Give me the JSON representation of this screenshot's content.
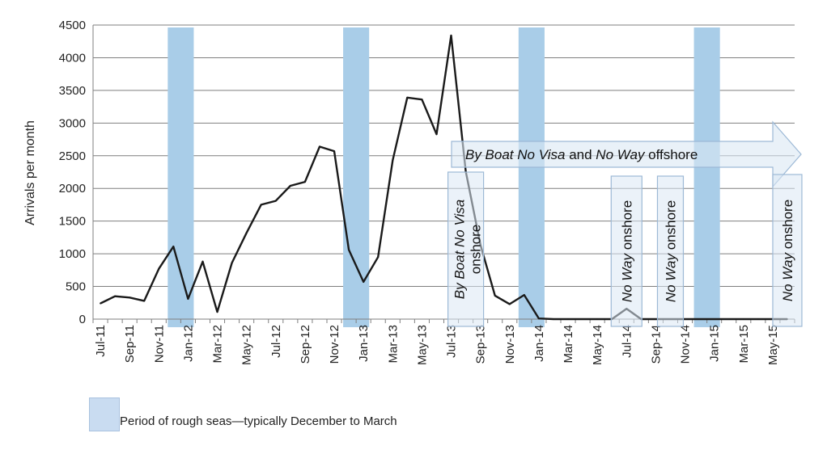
{
  "chart_data": {
    "type": "line",
    "ylabel": "Arrivals per month",
    "ylim": [
      0,
      4500
    ],
    "yticks": [
      "0",
      "500",
      "1000",
      "1500",
      "2000",
      "2500",
      "3000",
      "3500",
      "4000",
      "4500"
    ],
    "grid": true,
    "xtick_labels": [
      "Jul-11",
      "Sep-11",
      "Nov-11",
      "Jan-12",
      "Mar-12",
      "May-12",
      "Jul-12",
      "Sep-12",
      "Nov-12",
      "Jan-13",
      "Mar-13",
      "May-13",
      "Jul-13",
      "Sep-13",
      "Nov-13",
      "Jan-14",
      "Mar-14",
      "May-14",
      "Jul-14",
      "Sep-14",
      "Nov-14",
      "Jan-15",
      "Mar-15",
      "May-15"
    ],
    "x": [
      "Jul-11",
      "Aug-11",
      "Sep-11",
      "Oct-11",
      "Nov-11",
      "Dec-11",
      "Jan-12",
      "Feb-12",
      "Mar-12",
      "Apr-12",
      "May-12",
      "Jun-12",
      "Jul-12",
      "Aug-12",
      "Sep-12",
      "Oct-12",
      "Nov-12",
      "Dec-12",
      "Jan-13",
      "Feb-13",
      "Mar-13",
      "Apr-13",
      "May-13",
      "Jun-13",
      "Jul-13",
      "Aug-13",
      "Sep-13",
      "Oct-13",
      "Nov-13",
      "Dec-13",
      "Jan-14",
      "Feb-14",
      "Mar-14",
      "Apr-14",
      "May-14",
      "Jun-14",
      "Jul-14",
      "Aug-14",
      "Sep-14",
      "Oct-14",
      "Nov-14",
      "Dec-14",
      "Jan-15",
      "Feb-15",
      "Mar-15",
      "Apr-15",
      "May-15",
      "Jun-15"
    ],
    "series": [
      {
        "values": [
          240,
          350,
          330,
          280,
          770,
          1110,
          310,
          880,
          110,
          860,
          1320,
          1750,
          1810,
          2040,
          2100,
          2640,
          2570,
          1060,
          570,
          950,
          2430,
          3390,
          3360,
          2830,
          4340,
          2260,
          1140,
          360,
          230,
          370,
          10,
          0,
          0,
          0,
          0,
          0,
          160,
          0,
          0,
          0,
          0,
          0,
          0,
          0,
          0,
          0,
          0,
          0
        ]
      }
    ],
    "shaded_periods": [
      {
        "start": "Dec-11",
        "end": "Jan-12"
      },
      {
        "start": "Dec-12",
        "end": "Jan-13"
      },
      {
        "start": "Dec-13",
        "end": "Jan-14"
      },
      {
        "start": "Dec-14",
        "end": "Jan-15"
      }
    ],
    "annotations": {
      "offshore_arrow": [
        {
          "text": "By Boat No Visa",
          "style": "italic"
        },
        {
          "text": " and ",
          "style": "normal"
        },
        {
          "text": "No Way",
          "style": "italic"
        },
        {
          "text": " offshore",
          "style": "normal"
        }
      ],
      "onshore_boxes": [
        {
          "at": "Aug-13",
          "parts": [
            {
              "text": "By Boat No Visa",
              "style": "italic"
            },
            {
              "text": "onshore",
              "style": "normal"
            }
          ]
        },
        {
          "at": "Jul-14",
          "parts": [
            {
              "text": "No Way",
              "style": "italic"
            },
            {
              "text": " onshore",
              "style": "normal"
            }
          ]
        },
        {
          "at": "Oct-14",
          "parts": [
            {
              "text": "No Way",
              "style": "italic"
            },
            {
              "text": " onshore",
              "style": "normal"
            }
          ]
        },
        {
          "at": "Jun-15",
          "parts": [
            {
              "text": "No Way",
              "style": "italic"
            },
            {
              "text": " onshore",
              "style": "normal"
            }
          ]
        }
      ]
    },
    "legend": {
      "label": "Period of rough seas—typically December to March",
      "placement": "bottom-left"
    },
    "colors": {
      "line": "#1a1a1a",
      "shade": "#a9cde8",
      "grid": "#7f7f7f",
      "annotation_fill": "#dbe8f4",
      "annotation_border": "#9db9d6"
    }
  }
}
